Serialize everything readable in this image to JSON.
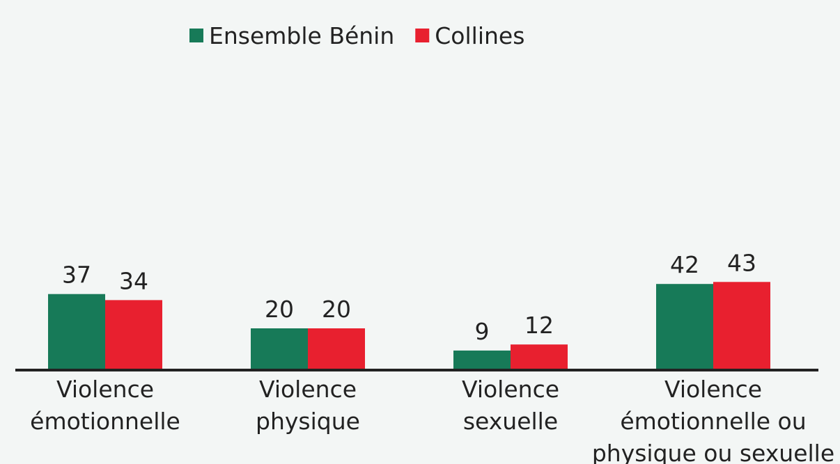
{
  "chart_data": {
    "type": "bar",
    "categories": [
      "Violence\némotionnelle",
      "Violence\nphysique",
      "Violence\nsexuelle",
      "Violence\némotionnelle ou\nphysique ou sexuelle"
    ],
    "series": [
      {
        "name": "Ensemble Bénin",
        "color": "#177a58",
        "values": [
          37,
          20,
          9,
          42
        ]
      },
      {
        "name": "Collines",
        "color": "#e8202f",
        "values": [
          34,
          20,
          12,
          43
        ]
      }
    ],
    "legend": "top"
  }
}
